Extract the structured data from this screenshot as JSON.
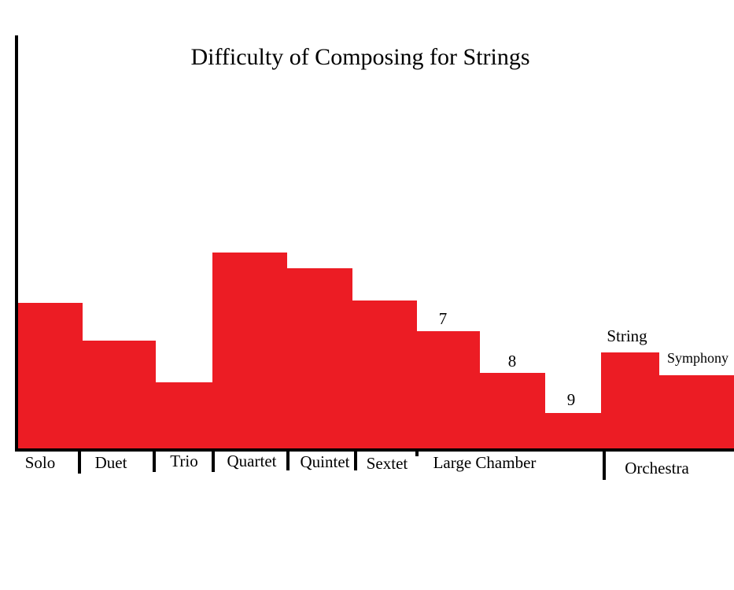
{
  "chart_data": {
    "type": "bar",
    "title": "Difficulty of Composing for Strings",
    "categories": [
      "Solo",
      "Duet",
      "Trio",
      "Quartet",
      "Quintet",
      "Sextet",
      "7",
      "8",
      "9",
      "String",
      "Symphony"
    ],
    "values": [
      185,
      137,
      84,
      249,
      229,
      188,
      149,
      96,
      45,
      122,
      93
    ],
    "groups": [
      "Large Chamber",
      "Orchestra"
    ],
    "color": "#ec1c24",
    "ylim": [
      0,
      525
    ]
  }
}
